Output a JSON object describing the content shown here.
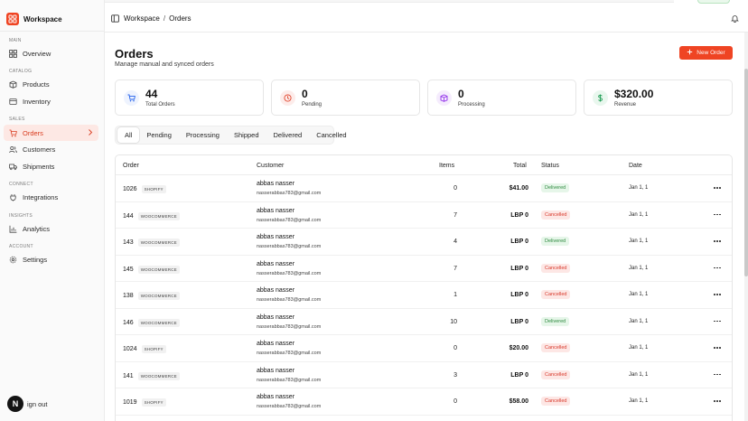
{
  "brand": {
    "name": "Workspace",
    "color": "#ef4423"
  },
  "sidebar": {
    "sections": [
      {
        "label": "MAIN",
        "items": [
          {
            "label": "Overview",
            "icon": "grid-icon"
          }
        ]
      },
      {
        "label": "CATALOG",
        "items": [
          {
            "label": "Products",
            "icon": "box-icon"
          },
          {
            "label": "Inventory",
            "icon": "layers-icon"
          }
        ]
      },
      {
        "label": "SALES",
        "items": [
          {
            "label": "Orders",
            "icon": "cart-icon",
            "active": true
          },
          {
            "label": "Customers",
            "icon": "users-icon"
          },
          {
            "label": "Shipments",
            "icon": "truck-icon"
          }
        ]
      },
      {
        "label": "CONNECT",
        "items": [
          {
            "label": "Integrations",
            "icon": "plug-icon"
          }
        ]
      },
      {
        "label": "INSIGHTS",
        "items": [
          {
            "label": "Analytics",
            "icon": "chart-icon"
          }
        ]
      },
      {
        "label": "ACCOUNT",
        "items": [
          {
            "label": "Settings",
            "icon": "gear-icon"
          }
        ]
      }
    ],
    "avatar_letter": "N",
    "signout_label": "ign out"
  },
  "topbar": {
    "crumb_root": "Workspace",
    "crumb_sep": "/",
    "crumb_current": "Orders"
  },
  "page": {
    "title": "Orders",
    "subtitle": "Manage manual and synced orders",
    "new_order_label": "New Order"
  },
  "stats": [
    {
      "value": "44",
      "label": "Total Orders",
      "icon": "cart-icon",
      "color": "#2563eb",
      "bg": "#eef3fe"
    },
    {
      "value": "0",
      "label": "Pending",
      "icon": "clock-icon",
      "color": "#e0442c",
      "bg": "#fdecea"
    },
    {
      "value": "0",
      "label": "Processing",
      "icon": "package-icon",
      "color": "#9333ea",
      "bg": "#f5ecfd"
    },
    {
      "value": "$320.00",
      "label": "Revenue",
      "icon": "dollar-icon",
      "color": "#1f9d55",
      "bg": "#e9f7ee"
    }
  ],
  "tabs": [
    "All",
    "Pending",
    "Processing",
    "Shipped",
    "Delivered",
    "Cancelled"
  ],
  "table": {
    "headers": {
      "order": "Order",
      "customer": "Customer",
      "items": "Items",
      "total": "Total",
      "status": "Status",
      "date": "Date"
    },
    "rows": [
      {
        "order": "1026",
        "source": "SHOPIFY",
        "name": "abbas nasser",
        "email": "nasserabbas783@gmail.com",
        "items": "0",
        "total": "$41.00",
        "status": "Delivered",
        "date": "Jan 1, 1"
      },
      {
        "order": "144",
        "source": "WOOCOMMERCE",
        "name": "abbas nasser",
        "email": "nasserabbas783@gmail.com",
        "items": "7",
        "total": "LBP 0",
        "status": "Cancelled",
        "date": "Jan 1, 1"
      },
      {
        "order": "143",
        "source": "WOOCOMMERCE",
        "name": "abbas nasser",
        "email": "nasserabbas783@gmail.com",
        "items": "4",
        "total": "LBP 0",
        "status": "Delivered",
        "date": "Jan 1, 1"
      },
      {
        "order": "145",
        "source": "WOOCOMMERCE",
        "name": "abbas nasser",
        "email": "nasserabbas783@gmail.com",
        "items": "7",
        "total": "LBP 0",
        "status": "Cancelled",
        "date": "Jan 1, 1"
      },
      {
        "order": "138",
        "source": "WOOCOMMERCE",
        "name": "abbas nasser",
        "email": "nasserabbas783@gmail.com",
        "items": "1",
        "total": "LBP 0",
        "status": "Cancelled",
        "date": "Jan 1, 1"
      },
      {
        "order": "146",
        "source": "WOOCOMMERCE",
        "name": "abbas nasser",
        "email": "nasserabbas783@gmail.com",
        "items": "10",
        "total": "LBP 0",
        "status": "Delivered",
        "date": "Jan 1, 1"
      },
      {
        "order": "1024",
        "source": "SHOPIFY",
        "name": "abbas nasser",
        "email": "nasserabbas783@gmail.com",
        "items": "0",
        "total": "$20.00",
        "status": "Cancelled",
        "date": "Jan 1, 1"
      },
      {
        "order": "141",
        "source": "WOOCOMMERCE",
        "name": "abbas nasser",
        "email": "nasserabbas783@gmail.com",
        "items": "3",
        "total": "LBP 0",
        "status": "Cancelled",
        "date": "Jan 1, 1"
      },
      {
        "order": "1019",
        "source": "SHOPIFY",
        "name": "abbas nasser",
        "email": "nasserabbas783@gmail.com",
        "items": "0",
        "total": "$58.00",
        "status": "Cancelled",
        "date": "Jan 1, 1"
      }
    ]
  },
  "colors": {
    "accent": "#ef4423",
    "delivered": "#2e8a3f",
    "cancelled": "#d8382a"
  }
}
